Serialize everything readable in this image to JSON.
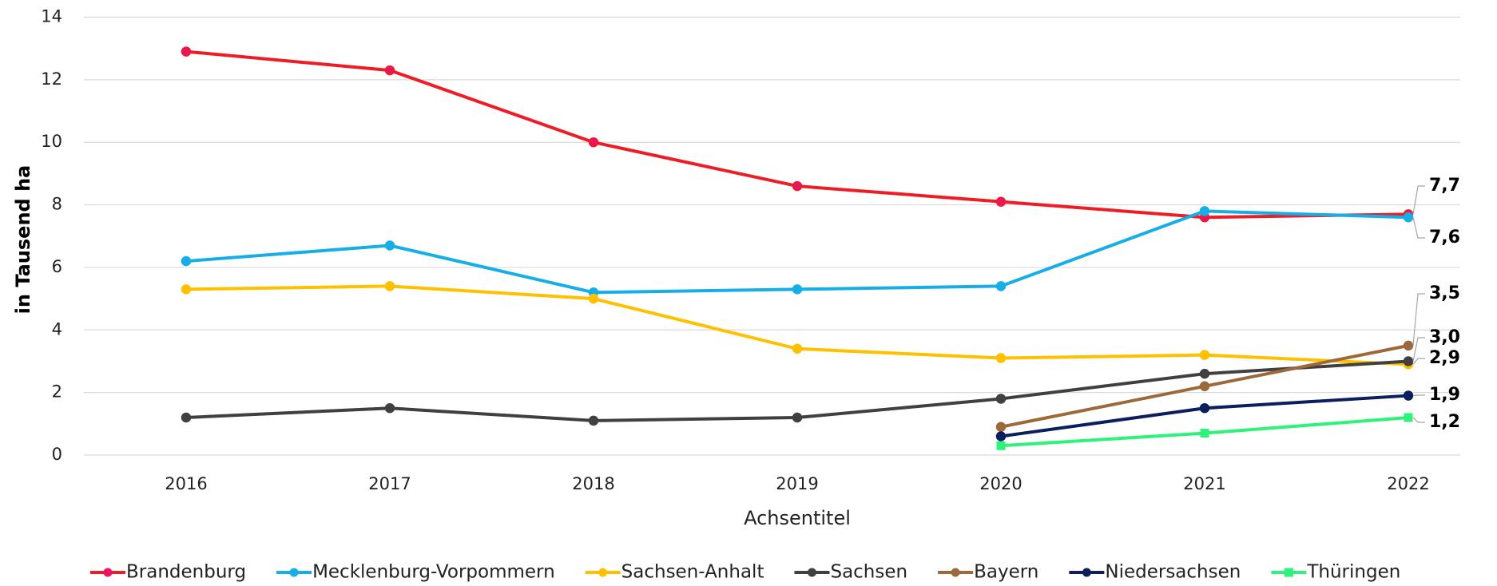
{
  "chart_data": {
    "type": "line",
    "categories": [
      "2016",
      "2017",
      "2018",
      "2019",
      "2020",
      "2021",
      "2022"
    ],
    "x_label": "Achsentitel",
    "y_label": "in Tausend ha",
    "ylim": [
      0,
      14
    ],
    "yticks": [
      0,
      2,
      4,
      6,
      8,
      10,
      12,
      14
    ],
    "grid": true,
    "legend": "bottom",
    "series": [
      {
        "name": "Brandenburg",
        "color": "#ee1c25",
        "marker_color": "#e8175d",
        "marker": "circle",
        "values": [
          12.9,
          12.3,
          10.0,
          8.6,
          8.1,
          7.6,
          7.7
        ],
        "value_labels": [
          null,
          null,
          null,
          null,
          null,
          null,
          "7,7"
        ]
      },
      {
        "name": "Mecklenburg-Vorpommern",
        "color": "#17aee8",
        "marker_color": "#17aee8",
        "marker": "circle",
        "values": [
          6.2,
          6.7,
          5.2,
          5.3,
          5.4,
          7.8,
          7.6
        ],
        "value_labels": [
          null,
          null,
          null,
          null,
          null,
          null,
          "7,6"
        ]
      },
      {
        "name": "Sachsen-Anhalt",
        "color": "#ffc000",
        "marker_color": "#ffc000",
        "marker": "circle",
        "values": [
          5.3,
          5.4,
          5.0,
          3.4,
          3.1,
          3.2,
          2.9
        ],
        "value_labels": [
          null,
          null,
          null,
          null,
          null,
          null,
          "2,9"
        ]
      },
      {
        "name": "Sachsen",
        "color": "#404040",
        "marker_color": "#404040",
        "marker": "circle",
        "values": [
          1.2,
          1.5,
          1.1,
          1.2,
          1.8,
          2.6,
          3.0
        ],
        "value_labels": [
          null,
          null,
          null,
          null,
          null,
          null,
          "3,0"
        ]
      },
      {
        "name": "Bayern",
        "color": "#9c6a3a",
        "marker_color": "#9c6a3a",
        "marker": "circle",
        "values": [
          null,
          null,
          null,
          null,
          0.9,
          2.2,
          3.5
        ],
        "value_labels": [
          null,
          null,
          null,
          null,
          null,
          null,
          "3,5"
        ]
      },
      {
        "name": "Niedersachsen",
        "color": "#0b1f5e",
        "marker_color": "#0b1f5e",
        "marker": "circle",
        "values": [
          null,
          null,
          null,
          null,
          0.6,
          1.5,
          1.9
        ],
        "value_labels": [
          null,
          null,
          null,
          null,
          null,
          null,
          "1,9"
        ]
      },
      {
        "name": "Thüringen",
        "color": "#2ef27a",
        "marker_color": "#2ef27a",
        "marker": "square",
        "values": [
          null,
          null,
          null,
          null,
          0.3,
          0.7,
          1.2
        ],
        "value_labels": [
          null,
          null,
          null,
          null,
          null,
          null,
          "1,2"
        ]
      }
    ]
  }
}
